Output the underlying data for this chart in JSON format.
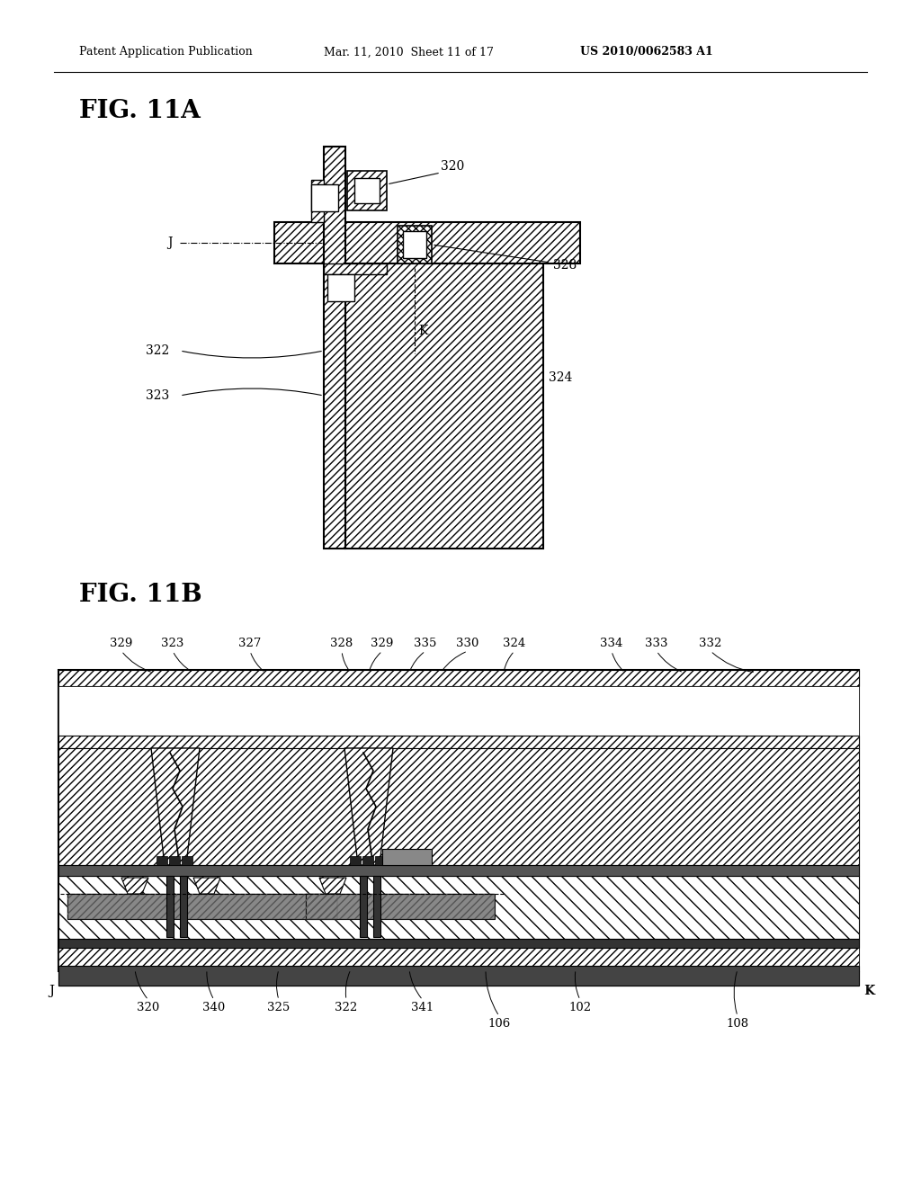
{
  "bg_color": "#ffffff",
  "header_text": "Patent Application Publication",
  "header_date": "Mar. 11, 2010  Sheet 11 of 17",
  "header_patent": "US 2010/0062583 A1",
  "fig11a_label": "FIG. 11A",
  "fig11b_label": "FIG. 11B"
}
